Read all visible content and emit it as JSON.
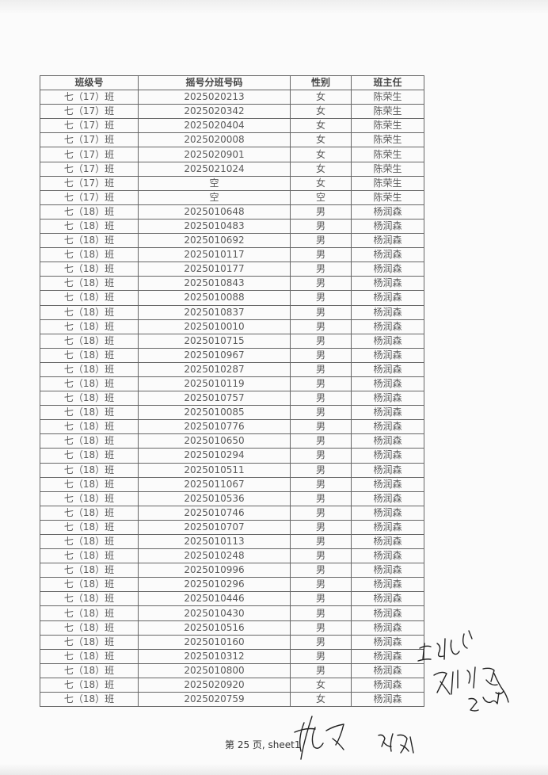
{
  "table": {
    "headers": [
      "班级号",
      "摇号分班号码",
      "性别",
      "班主任"
    ],
    "rows": [
      [
        "七（17）班",
        "2025020213",
        "女",
        "陈荣生"
      ],
      [
        "七（17）班",
        "2025020342",
        "女",
        "陈荣生"
      ],
      [
        "七（17）班",
        "2025020404",
        "女",
        "陈荣生"
      ],
      [
        "七（17）班",
        "2025020008",
        "女",
        "陈荣生"
      ],
      [
        "七（17）班",
        "2025020901",
        "女",
        "陈荣生"
      ],
      [
        "七（17）班",
        "2025021024",
        "女",
        "陈荣生"
      ],
      [
        "七（17）班",
        "空",
        "女",
        "陈荣生"
      ],
      [
        "七（17）班",
        "空",
        "空",
        "陈荣生"
      ],
      [
        "七（18）班",
        "2025010648",
        "男",
        "杨润森"
      ],
      [
        "七（18）班",
        "2025010483",
        "男",
        "杨润森"
      ],
      [
        "七（18）班",
        "2025010692",
        "男",
        "杨润森"
      ],
      [
        "七（18）班",
        "2025010117",
        "男",
        "杨润森"
      ],
      [
        "七（18）班",
        "2025010177",
        "男",
        "杨润森"
      ],
      [
        "七（18）班",
        "2025010843",
        "男",
        "杨润森"
      ],
      [
        "七（18）班",
        "2025010088",
        "男",
        "杨润森"
      ],
      [
        "七（18）班",
        "2025010837",
        "男",
        "杨润森"
      ],
      [
        "七（18）班",
        "2025010010",
        "男",
        "杨润森"
      ],
      [
        "七（18）班",
        "2025010715",
        "男",
        "杨润森"
      ],
      [
        "七（18）班",
        "2025010967",
        "男",
        "杨润森"
      ],
      [
        "七（18）班",
        "2025010287",
        "男",
        "杨润森"
      ],
      [
        "七（18）班",
        "2025010119",
        "男",
        "杨润森"
      ],
      [
        "七（18）班",
        "2025010757",
        "男",
        "杨润森"
      ],
      [
        "七（18）班",
        "2025010085",
        "男",
        "杨润森"
      ],
      [
        "七（18）班",
        "2025010776",
        "男",
        "杨润森"
      ],
      [
        "七（18）班",
        "2025010650",
        "男",
        "杨润森"
      ],
      [
        "七（18）班",
        "2025010294",
        "男",
        "杨润森"
      ],
      [
        "七（18）班",
        "2025010511",
        "男",
        "杨润森"
      ],
      [
        "七（18）班",
        "2025011067",
        "男",
        "杨润森"
      ],
      [
        "七（18）班",
        "2025010536",
        "男",
        "杨润森"
      ],
      [
        "七（18）班",
        "2025010746",
        "男",
        "杨润森"
      ],
      [
        "七（18）班",
        "2025010707",
        "男",
        "杨润森"
      ],
      [
        "七（18）班",
        "2025010113",
        "男",
        "杨润森"
      ],
      [
        "七（18）班",
        "2025010248",
        "男",
        "杨润森"
      ],
      [
        "七（18）班",
        "2025010996",
        "男",
        "杨润森"
      ],
      [
        "七（18）班",
        "2025010296",
        "男",
        "杨润森"
      ],
      [
        "七（18）班",
        "2025010446",
        "男",
        "杨润森"
      ],
      [
        "七（18）班",
        "2025010430",
        "男",
        "杨润森"
      ],
      [
        "七（18）班",
        "2025010516",
        "男",
        "杨润森"
      ],
      [
        "七（18）班",
        "2025010160",
        "男",
        "杨润森"
      ],
      [
        "七（18）班",
        "2025010312",
        "男",
        "杨润森"
      ],
      [
        "七（18）班",
        "2025010800",
        "男",
        "杨润森"
      ],
      [
        "七（18）班",
        "2025020920",
        "女",
        "杨润森"
      ],
      [
        "七（18）班",
        "2025020759",
        "女",
        "杨润森"
      ]
    ]
  },
  "footer": {
    "page_label": "第 25 页, sheet1"
  },
  "colors": {
    "ink": "#5a5a5a",
    "border": "#666666",
    "signature_ink": "#222222"
  }
}
